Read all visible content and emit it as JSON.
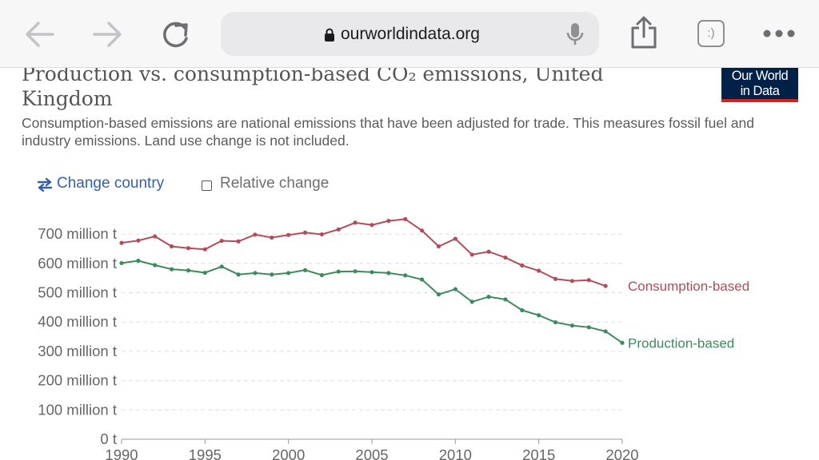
{
  "browser": {
    "url": "ourworldindata.org",
    "reader_button_label": ":)"
  },
  "page": {
    "title": "Production vs. consumption-based CO₂ emissions, United Kingdom",
    "subtitle": "Consumption-based emissions are national emissions that have been adjusted for trade. This measures fossil fuel and industry emissions. Land use change is not included.",
    "logo_line1": "Our World",
    "logo_line2": "in Data",
    "logo_colors": {
      "background": "#002147",
      "accent": "#ce261e"
    },
    "controls": {
      "change_country_label": "Change country",
      "relative_change_label": "Relative change",
      "relative_change_checked": false
    }
  },
  "chart_data": {
    "type": "line",
    "title": "Production vs. consumption-based CO₂ emissions, United Kingdom",
    "ylim": [
      0,
      700000000
    ],
    "y_ticks": [
      {
        "value": 0,
        "label": "0 t"
      },
      {
        "value": 100000000,
        "label": "100 million t"
      },
      {
        "value": 200000000,
        "label": "200 million t"
      },
      {
        "value": 300000000,
        "label": "300 million t"
      },
      {
        "value": 400000000,
        "label": "400 million t"
      },
      {
        "value": 500000000,
        "label": "500 million t"
      },
      {
        "value": 600000000,
        "label": "600 million t"
      },
      {
        "value": 700000000,
        "label": "700 million t"
      }
    ],
    "x_ticks": [
      1990,
      1995,
      2000,
      2005,
      2010,
      2015,
      2020
    ],
    "grid": true,
    "series": [
      {
        "name": "Consumption-based",
        "color": "#b14d5a",
        "x": [
          1990,
          1991,
          1992,
          1993,
          1994,
          1995,
          1996,
          1997,
          1998,
          1999,
          2000,
          2001,
          2002,
          2003,
          2004,
          2005,
          2006,
          2007,
          2008,
          2009,
          2010,
          2011,
          2012,
          2013,
          2014,
          2015,
          2016,
          2017,
          2018,
          2019
        ],
        "values": [
          670000000,
          678000000,
          692000000,
          658000000,
          652000000,
          648000000,
          677000000,
          675000000,
          698000000,
          688000000,
          697000000,
          705000000,
          699000000,
          716000000,
          739000000,
          731000000,
          745000000,
          751000000,
          712000000,
          658000000,
          684000000,
          630000000,
          640000000,
          620000000,
          593000000,
          575000000,
          547000000,
          540000000,
          543000000,
          523000000
        ]
      },
      {
        "name": "Production-based",
        "color": "#3e8a5f",
        "x": [
          1990,
          1991,
          1992,
          1993,
          1994,
          1995,
          1996,
          1997,
          1998,
          1999,
          2000,
          2001,
          2002,
          2003,
          2004,
          2005,
          2006,
          2007,
          2008,
          2009,
          2010,
          2011,
          2012,
          2013,
          2014,
          2015,
          2016,
          2017,
          2018,
          2019,
          2020
        ],
        "values": [
          601000000,
          609000000,
          594000000,
          580000000,
          576000000,
          568000000,
          589000000,
          562000000,
          567000000,
          562000000,
          567000000,
          577000000,
          560000000,
          572000000,
          573000000,
          570000000,
          567000000,
          559000000,
          545000000,
          494000000,
          512000000,
          469000000,
          486000000,
          477000000,
          440000000,
          423000000,
          399000000,
          388000000,
          382000000,
          368000000,
          329000000
        ]
      }
    ]
  }
}
